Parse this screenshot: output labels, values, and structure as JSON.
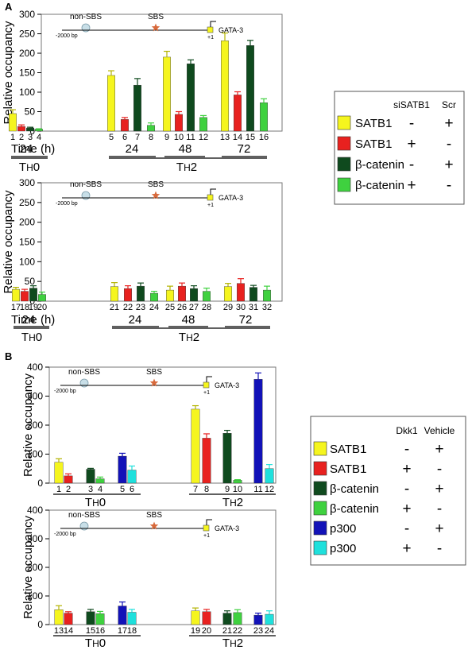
{
  "panels": {
    "A": {
      "letter": "A",
      "legend": {
        "headers": [
          "siSATB1",
          "Scr"
        ],
        "entries": [
          {
            "label": "SATB1",
            "color": "#f5f51e",
            "marks": [
              "-",
              "+"
            ]
          },
          {
            "label": "SATB1",
            "color": "#e8211f",
            "marks": [
              "+",
              "-"
            ]
          },
          {
            "label": "β-catenin",
            "color": "#0f4a1e",
            "marks": [
              "-",
              "+"
            ]
          },
          {
            "label": "β-catenin",
            "color": "#3fd13f",
            "marks": [
              "+",
              "-"
            ]
          }
        ]
      }
    },
    "B": {
      "letter": "B",
      "legend": {
        "headers": [
          "Dkk1",
          "Vehicle"
        ],
        "entries": [
          {
            "label": "SATB1",
            "color": "#f5f51e",
            "marks": [
              "-",
              "+"
            ]
          },
          {
            "label": "SATB1",
            "color": "#e8211f",
            "marks": [
              "+",
              "-"
            ]
          },
          {
            "label": "β-catenin",
            "color": "#0f4a1e",
            "marks": [
              "-",
              "+"
            ]
          },
          {
            "label": "β-catenin",
            "color": "#3fd13f",
            "marks": [
              "+",
              "-"
            ]
          },
          {
            "label": "p300",
            "color": "#1212b8",
            "marks": [
              "-",
              "+"
            ]
          },
          {
            "label": "p300",
            "color": "#1fe0dc",
            "marks": [
              "+",
              "-"
            ]
          }
        ]
      }
    }
  },
  "colors": {
    "satb1_scr": "#f5f51e",
    "satb1_si": "#e8211f",
    "bcat_scr": "#0f4a1e",
    "bcat_si": "#3fd13f",
    "p300_veh": "#1212b8",
    "p300_dkk": "#1fe0dc"
  },
  "chart_data": [
    {
      "type": "bar",
      "ylabel": "Relative occupancy",
      "ylim": [
        0,
        300
      ],
      "yticks": [
        0,
        50,
        100,
        150,
        200,
        250,
        300
      ],
      "xaxis_label": "Time (h)",
      "bar_numbers": [
        "1",
        "2",
        "3",
        "4",
        "5",
        "6",
        "7",
        "8",
        "9",
        "10",
        "11",
        "12",
        "13",
        "14",
        "15",
        "16"
      ],
      "values": [
        45,
        12,
        8,
        5,
        143,
        30,
        118,
        15,
        190,
        43,
        173,
        35,
        232,
        93,
        220,
        73
      ],
      "errors": [
        10,
        4,
        2,
        1,
        12,
        5,
        17,
        6,
        15,
        7,
        10,
        5,
        20,
        8,
        13,
        10
      ],
      "colors": [
        "#f5f51e",
        "#e8211f",
        "#0f4a1e",
        "#3fd13f",
        "#f5f51e",
        "#e8211f",
        "#0f4a1e",
        "#3fd13f",
        "#f5f51e",
        "#e8211f",
        "#0f4a1e",
        "#3fd13f",
        "#f5f51e",
        "#e8211f",
        "#0f4a1e",
        "#3fd13f"
      ],
      "time_labels": [
        "24",
        "24",
        "48",
        "72"
      ],
      "groups": [
        "TH0",
        "TH2"
      ],
      "diagram": {
        "left": "non-SBS",
        "center": "SBS",
        "right": "GATA-3",
        "start": "-2000 bp",
        "tss": "+1"
      }
    },
    {
      "type": "bar",
      "ylabel": "Relative occupancy",
      "ylim": [
        0,
        300
      ],
      "yticks": [
        0,
        50,
        100,
        150,
        200,
        250,
        300
      ],
      "xaxis_label": "Time (h)",
      "bar_numbers": [
        "17",
        "18",
        "19",
        "20",
        "21",
        "22",
        "23",
        "24",
        "25",
        "26",
        "27",
        "28",
        "29",
        "30",
        "31",
        "32"
      ],
      "values": [
        30,
        25,
        33,
        17,
        37,
        32,
        38,
        20,
        28,
        38,
        32,
        25,
        37,
        45,
        35,
        28
      ],
      "errors": [
        5,
        5,
        6,
        6,
        10,
        7,
        8,
        5,
        10,
        8,
        7,
        8,
        8,
        12,
        5,
        10
      ],
      "colors": [
        "#f5f51e",
        "#e8211f",
        "#0f4a1e",
        "#3fd13f",
        "#f5f51e",
        "#e8211f",
        "#0f4a1e",
        "#3fd13f",
        "#f5f51e",
        "#e8211f",
        "#0f4a1e",
        "#3fd13f",
        "#f5f51e",
        "#e8211f",
        "#0f4a1e",
        "#3fd13f"
      ],
      "time_labels": [
        "24",
        "24",
        "48",
        "72"
      ],
      "groups": [
        "TH0",
        "TH2"
      ],
      "diagram": {
        "left": "non-SBS",
        "center": "SBS",
        "right": "GATA-3",
        "start": "-2000 bp",
        "tss": "+1"
      }
    },
    {
      "type": "bar",
      "ylabel": "Relative occupancy",
      "ylim": [
        0,
        400
      ],
      "yticks": [
        0,
        100,
        200,
        300,
        400
      ],
      "bar_numbers": [
        "1",
        "2",
        "3",
        "4",
        "5",
        "6",
        "7",
        "8",
        "9",
        "10",
        "11",
        "12"
      ],
      "values": [
        72,
        25,
        48,
        15,
        93,
        45,
        255,
        155,
        172,
        10,
        358,
        50
      ],
      "errors": [
        12,
        7,
        3,
        6,
        10,
        14,
        12,
        15,
        10,
        2,
        22,
        14
      ],
      "colors": [
        "#f5f51e",
        "#e8211f",
        "#0f4a1e",
        "#3fd13f",
        "#1212b8",
        "#1fe0dc",
        "#f5f51e",
        "#e8211f",
        "#0f4a1e",
        "#3fd13f",
        "#1212b8",
        "#1fe0dc"
      ],
      "groups": [
        "TH0",
        "TH2"
      ],
      "diagram": {
        "left": "non-SBS",
        "center": "SBS",
        "right": "GATA-3",
        "start": "-2000 bp",
        "tss": "+1"
      }
    },
    {
      "type": "bar",
      "ylabel": "Relative occupancy",
      "ylim": [
        0,
        400
      ],
      "yticks": [
        0,
        100,
        200,
        300,
        400
      ],
      "bar_numbers": [
        "13",
        "14",
        "15",
        "16",
        "17",
        "18",
        "19",
        "20",
        "21",
        "22",
        "23",
        "24"
      ],
      "values": [
        52,
        40,
        45,
        38,
        65,
        43,
        48,
        45,
        40,
        42,
        33,
        36
      ],
      "errors": [
        14,
        5,
        8,
        8,
        14,
        10,
        10,
        8,
        8,
        10,
        7,
        12
      ],
      "colors": [
        "#f5f51e",
        "#e8211f",
        "#0f4a1e",
        "#3fd13f",
        "#1212b8",
        "#1fe0dc",
        "#f5f51e",
        "#e8211f",
        "#0f4a1e",
        "#3fd13f",
        "#1212b8",
        "#1fe0dc"
      ],
      "groups": [
        "TH0",
        "TH2"
      ],
      "diagram": {
        "left": "non-SBS",
        "center": "SBS",
        "right": "GATA-3",
        "start": "-2000 bp",
        "tss": "+1"
      }
    }
  ]
}
